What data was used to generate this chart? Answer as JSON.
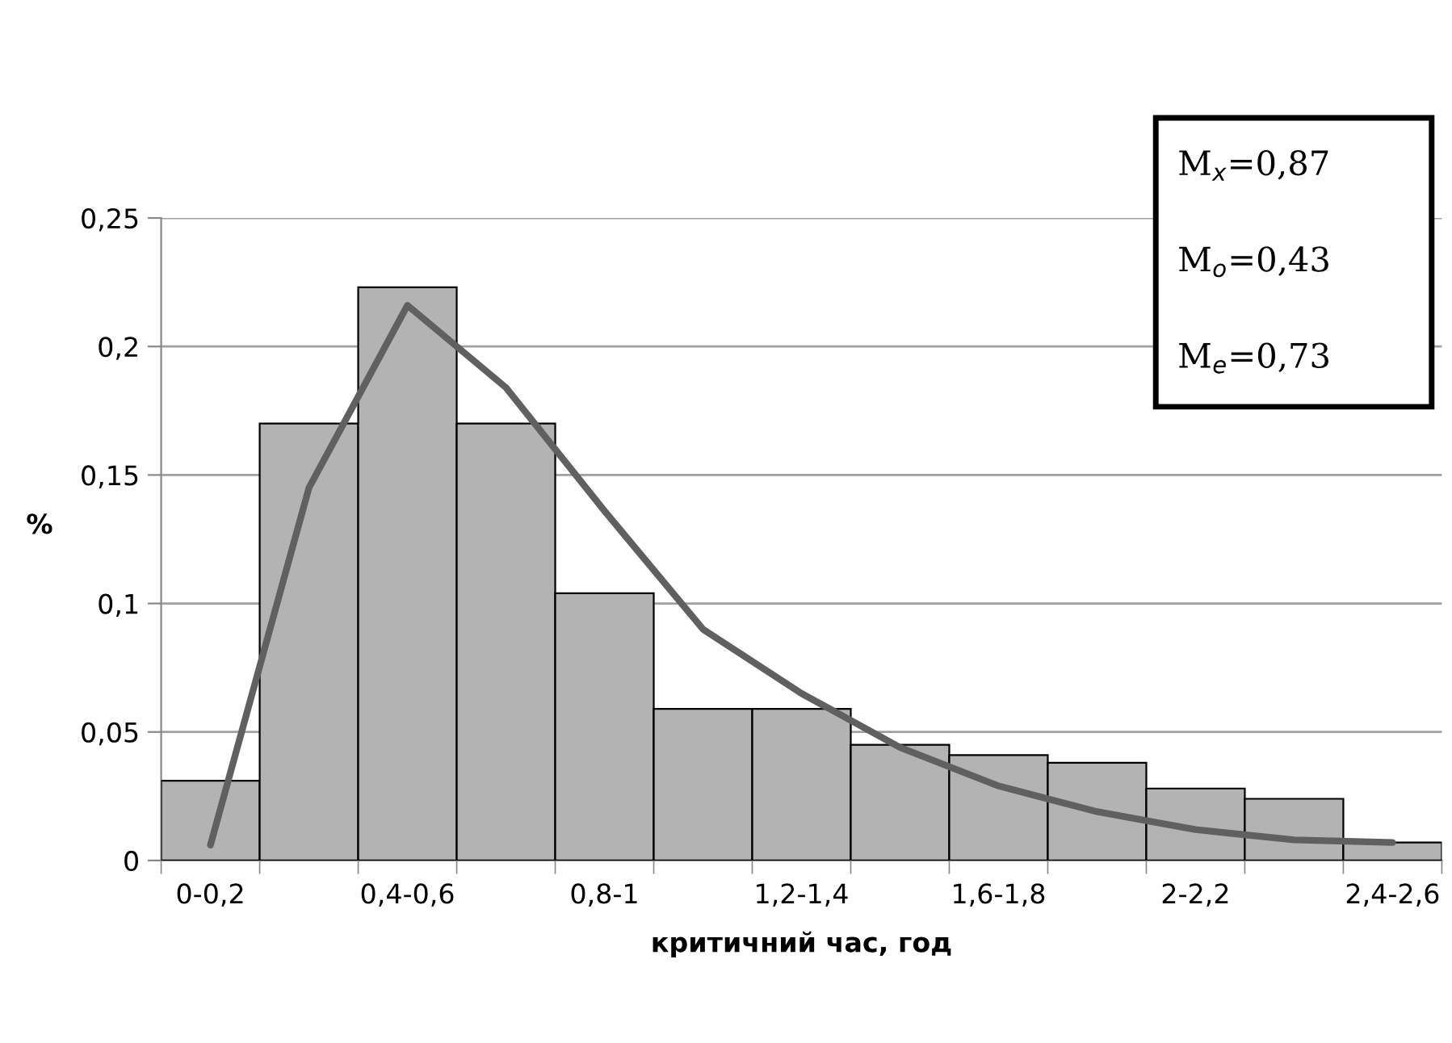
{
  "chart_data": {
    "type": "bar",
    "xlabel": "критичний час, год",
    "ylabel": "%",
    "categories": [
      "0-0,2",
      null,
      "0,4-0,6",
      null,
      "0,8-1",
      null,
      "1,2-1,4",
      null,
      "1,6-1,8",
      null,
      "2-2,2",
      null,
      "2,4-2,6"
    ],
    "series": [
      {
        "color": "#b3b3b3",
        "values": [
          0.031,
          0.17,
          0.223,
          0.17,
          0.104,
          0.059,
          0.059,
          0.045,
          0.041,
          0.038,
          0.028,
          0.024,
          0.007
        ]
      },
      {
        "type": "line",
        "color": "#606060",
        "values": [
          0.006,
          0.145,
          0.216,
          0.184,
          0.136,
          0.09,
          0.065,
          0.044,
          0.029,
          0.019,
          0.012,
          0.008,
          0.007
        ]
      }
    ],
    "ylim": [
      0,
      0.25
    ],
    "yticks": [
      0,
      {
        "value": 0.05,
        "label": "0,05"
      },
      {
        "value": 0.1,
        "label": "0,1"
      },
      {
        "value": 0.15,
        "label": "0,15"
      },
      {
        "value": 0.2,
        "label": "0,2"
      },
      {
        "value": 0.25,
        "label": "0,25"
      }
    ],
    "grid": "y",
    "legend": false,
    "annotations": [
      "M$_{x}$=0,87",
      "M$_{o}$=0,43",
      "M$_{e}$=0,73"
    ]
  }
}
